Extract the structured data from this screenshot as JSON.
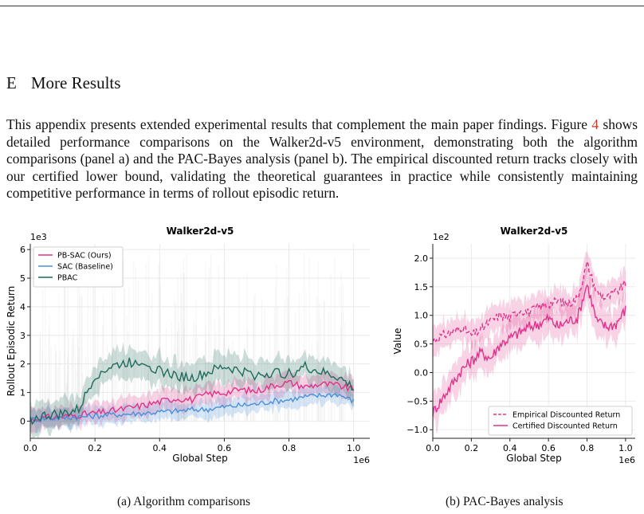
{
  "section": {
    "number": "E",
    "title": "More Results"
  },
  "paragraph": {
    "part1": "This appendix presents extended experimental results that complement the main paper findings. Figure ",
    "ref": "4",
    "part2": " shows detailed performance comparisons on the Walker2d-v5 environment, demonstrating both the algorithm comparisons (panel a) and the PAC-Bayes analysis (panel b). The empirical discounted return tracks closely with our certified lower bound, validating the theoretical guarantees in practice while consistently maintaining competitive performance in terms of rollout episodic return."
  },
  "captions": {
    "a": "(a) Algorithm comparisons",
    "b": "(b) PAC-Bayes analysis"
  },
  "colors": {
    "pbsac": "#e0328a",
    "sac": "#4a90d9",
    "pbac": "#1f6b5c"
  },
  "chart_data": [
    {
      "type": "line",
      "title": "Walker2d-v5",
      "xlabel": "Global Step",
      "ylabel": "Rollout Episodic Return",
      "x_multiplier": "1e6",
      "y_multiplier": "1e3",
      "xlim": [
        0,
        1.05
      ],
      "ylim": [
        -0.6,
        6.2
      ],
      "xticks": [
        "0.0",
        "0.2",
        "0.4",
        "0.6",
        "0.8",
        "1.0"
      ],
      "yticks": [
        "0",
        "1",
        "2",
        "3",
        "4",
        "5",
        "6"
      ],
      "legend": "top-left",
      "x": [
        0.0,
        0.05,
        0.1,
        0.15,
        0.2,
        0.25,
        0.3,
        0.35,
        0.4,
        0.45,
        0.5,
        0.55,
        0.6,
        0.65,
        0.7,
        0.75,
        0.8,
        0.85,
        0.9,
        0.95,
        1.0
      ],
      "series": [
        {
          "name": "PB-SAC (Ours)",
          "values": [
            0.05,
            0.12,
            0.15,
            0.22,
            0.28,
            0.35,
            0.45,
            0.55,
            0.68,
            0.8,
            0.75,
            0.95,
            1.0,
            1.1,
            1.05,
            1.25,
            1.35,
            1.2,
            1.3,
            1.25,
            1.1
          ]
        },
        {
          "name": "SAC (Baseline)",
          "values": [
            0.05,
            0.1,
            0.12,
            0.15,
            0.18,
            0.22,
            0.25,
            0.28,
            0.32,
            0.35,
            0.4,
            0.42,
            0.5,
            0.55,
            0.6,
            0.7,
            0.75,
            0.85,
            0.9,
            0.95,
            0.7
          ]
        },
        {
          "name": "PBAC",
          "values": [
            0.05,
            0.2,
            0.25,
            0.4,
            1.6,
            1.9,
            2.05,
            2.1,
            1.75,
            1.6,
            1.5,
            1.7,
            1.9,
            1.75,
            1.6,
            1.7,
            1.65,
            1.9,
            1.7,
            1.55,
            1.15
          ]
        }
      ]
    },
    {
      "type": "line",
      "title": "Walker2d-v5",
      "xlabel": "Global Step",
      "ylabel": "Value",
      "x_multiplier": "1e6",
      "y_multiplier": "1e2",
      "xlim": [
        0,
        1.05
      ],
      "ylim": [
        -1.15,
        2.25
      ],
      "xticks": [
        "0.0",
        "0.2",
        "0.4",
        "0.6",
        "0.8",
        "1.0"
      ],
      "yticks": [
        "−1.0",
        "−0.5",
        "0.0",
        "0.5",
        "1.0",
        "1.5",
        "2.0"
      ],
      "legend": "bottom-right",
      "x": [
        0.0,
        0.05,
        0.1,
        0.15,
        0.2,
        0.25,
        0.3,
        0.35,
        0.4,
        0.45,
        0.5,
        0.55,
        0.6,
        0.65,
        0.7,
        0.75,
        0.8,
        0.85,
        0.9,
        0.95,
        1.0
      ],
      "series": [
        {
          "name": "Empirical Discounted Return",
          "values": [
            0.55,
            0.65,
            0.7,
            0.8,
            0.65,
            0.75,
            0.9,
            1.0,
            0.95,
            1.1,
            1.05,
            1.15,
            1.2,
            1.25,
            1.2,
            1.3,
            1.9,
            1.4,
            1.3,
            1.4,
            1.55
          ]
        },
        {
          "name": "Certified Discounted Return",
          "values": [
            -0.7,
            -0.45,
            -0.2,
            0.05,
            0.2,
            0.35,
            0.25,
            0.5,
            0.6,
            0.7,
            0.8,
            0.85,
            0.95,
            0.8,
            0.9,
            0.95,
            1.55,
            0.9,
            0.8,
            0.85,
            1.1
          ]
        }
      ]
    }
  ]
}
